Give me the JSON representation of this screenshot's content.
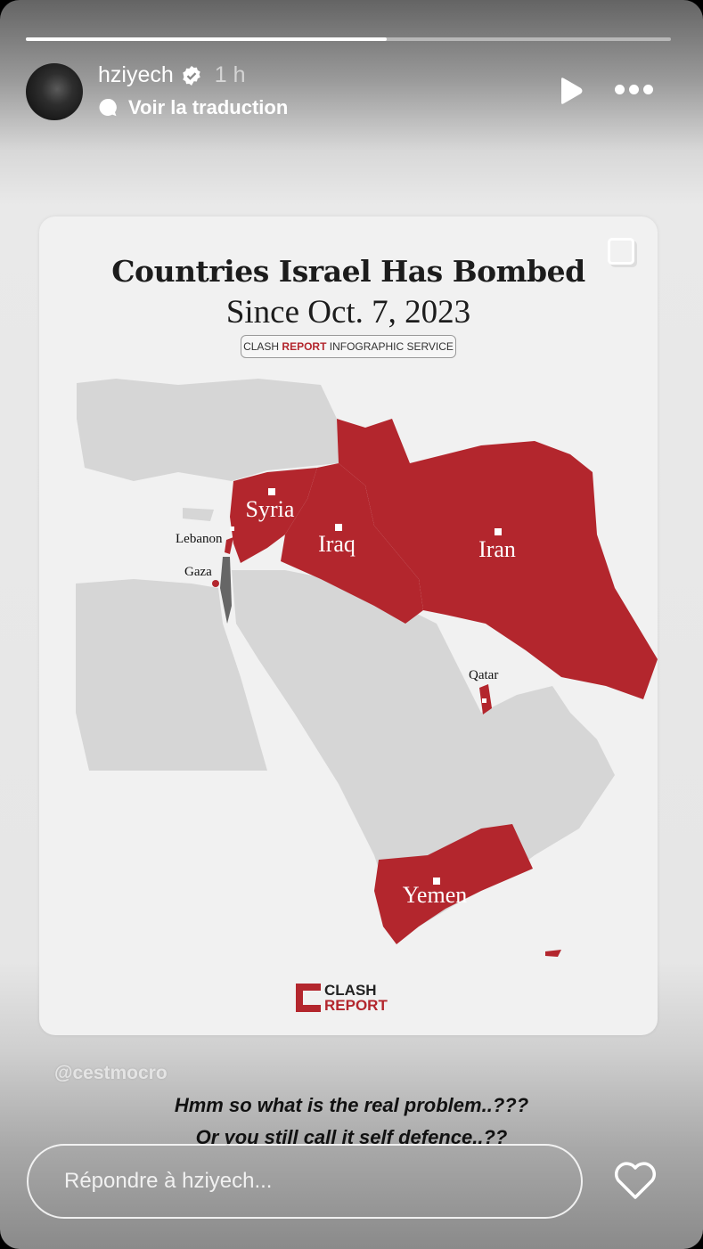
{
  "story": {
    "progress_percent": 56,
    "username": "hziyech",
    "verified": true,
    "time": "1 h",
    "translate_label": "Voir la traduction",
    "icons": {
      "play": "play-icon",
      "more": "more-icon",
      "verified": "verified-badge-icon",
      "translate": "speech-bubble-icon",
      "like": "heart-icon"
    }
  },
  "post": {
    "title": "Countries Israel Has Bombed",
    "subtitle": "Since Oct. 7, 2023",
    "badge_prefix": "CLASH ",
    "badge_bold": "REPORT",
    "badge_suffix": " INFOGRAPHIC SERVICE",
    "labels": {
      "syria": "Syria",
      "iraq": "Iraq",
      "iran": "Iran",
      "yemen": "Yemen",
      "lebanon": "Lebanon",
      "gaza": "Gaza",
      "qatar": "Qatar"
    },
    "highlight_color": "#b3262d",
    "land_color": "#d6d6d6",
    "logo_top": "CLASH",
    "logo_bottom": "REPORT"
  },
  "overlay": {
    "watermark": "@cestmocro",
    "caption_line1": "Hmm so what is the real problem..???",
    "caption_line2": "Or you still call it self defence..??"
  },
  "reply": {
    "placeholder": "Répondre à hziyech..."
  }
}
